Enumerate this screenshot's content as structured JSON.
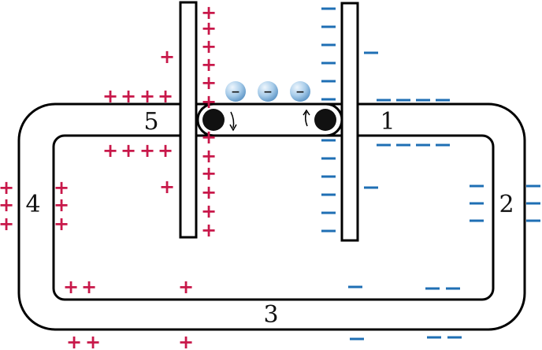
{
  "labels": {
    "one": "1",
    "two": "2",
    "three": "3",
    "four": "4",
    "five": "5"
  },
  "symbols": {
    "plus": "+",
    "minus": "−",
    "electron": "−"
  },
  "colors": {
    "positive": "#c8184a",
    "negative": "#1f6fb4",
    "outline": "#000000",
    "electron_fill": "#a9cdea"
  },
  "icons": {
    "electron": "electron-sphere-icon",
    "roller": "roller-icon",
    "arrow": "rotation-arrow-icon"
  }
}
